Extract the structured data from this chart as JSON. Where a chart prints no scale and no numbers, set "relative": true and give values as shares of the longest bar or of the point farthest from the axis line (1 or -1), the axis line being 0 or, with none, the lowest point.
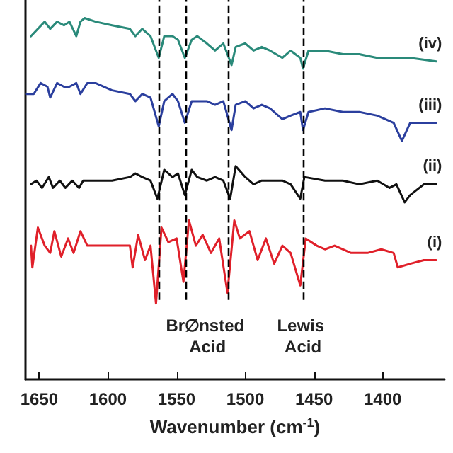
{
  "chart_data": {
    "type": "line",
    "relative": true,
    "xlabel": "Wavenumber (cm$^{-1}$)",
    "xlim": [
      1660,
      1355
    ],
    "xticks": [
      1650,
      1600,
      1550,
      1500,
      1450,
      1400
    ],
    "grid": false,
    "legend": false,
    "marker": "none",
    "line_style": "solid",
    "series": [
      {
        "name": "(iv)",
        "color": "#2a8a7a",
        "x": [
          1656,
          1651,
          1646,
          1642,
          1637,
          1632,
          1628,
          1623,
          1620,
          1617,
          1609,
          1597,
          1584,
          1580,
          1575,
          1569,
          1563,
          1559,
          1553,
          1549,
          1544,
          1539,
          1535,
          1528,
          1522,
          1516,
          1510,
          1507,
          1500,
          1494,
          1488,
          1482,
          1473,
          1467,
          1460,
          1458,
          1454,
          1442,
          1429,
          1417,
          1404,
          1392,
          1380,
          1361
        ],
        "values": [
          0.95,
          0.97,
          0.99,
          0.97,
          0.99,
          0.98,
          0.99,
          0.95,
          0.99,
          1.0,
          0.99,
          0.98,
          0.97,
          0.95,
          0.97,
          0.95,
          0.89,
          0.95,
          0.95,
          0.94,
          0.89,
          0.94,
          0.95,
          0.93,
          0.91,
          0.93,
          0.87,
          0.92,
          0.93,
          0.91,
          0.92,
          0.91,
          0.89,
          0.91,
          0.89,
          0.86,
          0.91,
          0.91,
          0.9,
          0.9,
          0.89,
          0.89,
          0.89,
          0.88
        ]
      },
      {
        "name": "(iii)",
        "color": "#2b3f9e",
        "x": [
          1659,
          1654,
          1649,
          1644,
          1642,
          1637,
          1632,
          1628,
          1623,
          1620,
          1615,
          1609,
          1597,
          1584,
          1580,
          1575,
          1569,
          1563,
          1559,
          1553,
          1549,
          1544,
          1539,
          1535,
          1528,
          1522,
          1516,
          1510,
          1507,
          1500,
          1494,
          1488,
          1482,
          1473,
          1467,
          1460,
          1458,
          1454,
          1442,
          1429,
          1417,
          1404,
          1392,
          1386,
          1380,
          1370,
          1361
        ],
        "values": [
          0.79,
          0.79,
          0.82,
          0.81,
          0.78,
          0.82,
          0.81,
          0.81,
          0.82,
          0.79,
          0.82,
          0.82,
          0.8,
          0.79,
          0.77,
          0.79,
          0.78,
          0.7,
          0.77,
          0.79,
          0.77,
          0.71,
          0.77,
          0.77,
          0.77,
          0.76,
          0.77,
          0.69,
          0.76,
          0.77,
          0.75,
          0.76,
          0.75,
          0.72,
          0.73,
          0.74,
          0.69,
          0.74,
          0.75,
          0.74,
          0.74,
          0.73,
          0.71,
          0.66,
          0.71,
          0.71,
          0.71
        ]
      },
      {
        "name": "(ii)",
        "color": "#111111",
        "x": [
          1656,
          1652,
          1648,
          1643,
          1640,
          1635,
          1631,
          1626,
          1621,
          1618,
          1612,
          1597,
          1584,
          1580,
          1575,
          1569,
          1564,
          1559,
          1553,
          1549,
          1544,
          1539,
          1535,
          1528,
          1522,
          1516,
          1511,
          1507,
          1500,
          1494,
          1488,
          1482,
          1473,
          1467,
          1460,
          1457,
          1442,
          1429,
          1417,
          1404,
          1395,
          1390,
          1384,
          1380,
          1370,
          1361
        ],
        "values": [
          0.54,
          0.55,
          0.53,
          0.56,
          0.53,
          0.55,
          0.53,
          0.55,
          0.53,
          0.55,
          0.55,
          0.55,
          0.56,
          0.57,
          0.56,
          0.55,
          0.5,
          0.58,
          0.56,
          0.57,
          0.51,
          0.58,
          0.56,
          0.55,
          0.56,
          0.55,
          0.5,
          0.59,
          0.56,
          0.54,
          0.55,
          0.55,
          0.55,
          0.54,
          0.5,
          0.56,
          0.55,
          0.55,
          0.54,
          0.55,
          0.53,
          0.54,
          0.49,
          0.51,
          0.54,
          0.54
        ]
      },
      {
        "name": "(i)",
        "color": "#e0202a",
        "x": [
          1656,
          1655,
          1651,
          1646,
          1642,
          1639,
          1634,
          1629,
          1625,
          1620,
          1615,
          1609,
          1597,
          1584,
          1582,
          1578,
          1573,
          1569,
          1565,
          1561,
          1556,
          1550,
          1545,
          1541,
          1536,
          1531,
          1525,
          1519,
          1513,
          1508,
          1504,
          1497,
          1491,
          1485,
          1479,
          1473,
          1467,
          1460,
          1456,
          1448,
          1442,
          1435,
          1423,
          1411,
          1401,
          1392,
          1389,
          1380,
          1370,
          1361
        ],
        "values": [
          0.37,
          0.31,
          0.42,
          0.37,
          0.35,
          0.41,
          0.34,
          0.39,
          0.35,
          0.41,
          0.37,
          0.37,
          0.37,
          0.37,
          0.31,
          0.4,
          0.33,
          0.37,
          0.21,
          0.42,
          0.38,
          0.39,
          0.27,
          0.44,
          0.37,
          0.4,
          0.35,
          0.39,
          0.24,
          0.44,
          0.39,
          0.41,
          0.33,
          0.39,
          0.32,
          0.37,
          0.35,
          0.26,
          0.39,
          0.37,
          0.36,
          0.37,
          0.35,
          0.35,
          0.36,
          0.35,
          0.31,
          0.32,
          0.33,
          0.33
        ]
      }
    ],
    "ref_lines": [
      {
        "axis": "x",
        "value": 1563,
        "line_style": "dashed",
        "color": "#000000"
      },
      {
        "axis": "x",
        "value": 1543,
        "line_style": "dashed",
        "color": "#000000"
      },
      {
        "axis": "x",
        "value": 1512,
        "line_style": "dashed",
        "color": "#000000"
      },
      {
        "axis": "x",
        "value": 1458,
        "line_style": "dashed",
        "color": "#000000"
      }
    ],
    "annotations": [
      "Br∅nsted Acid",
      "Lewis Acid"
    ]
  }
}
